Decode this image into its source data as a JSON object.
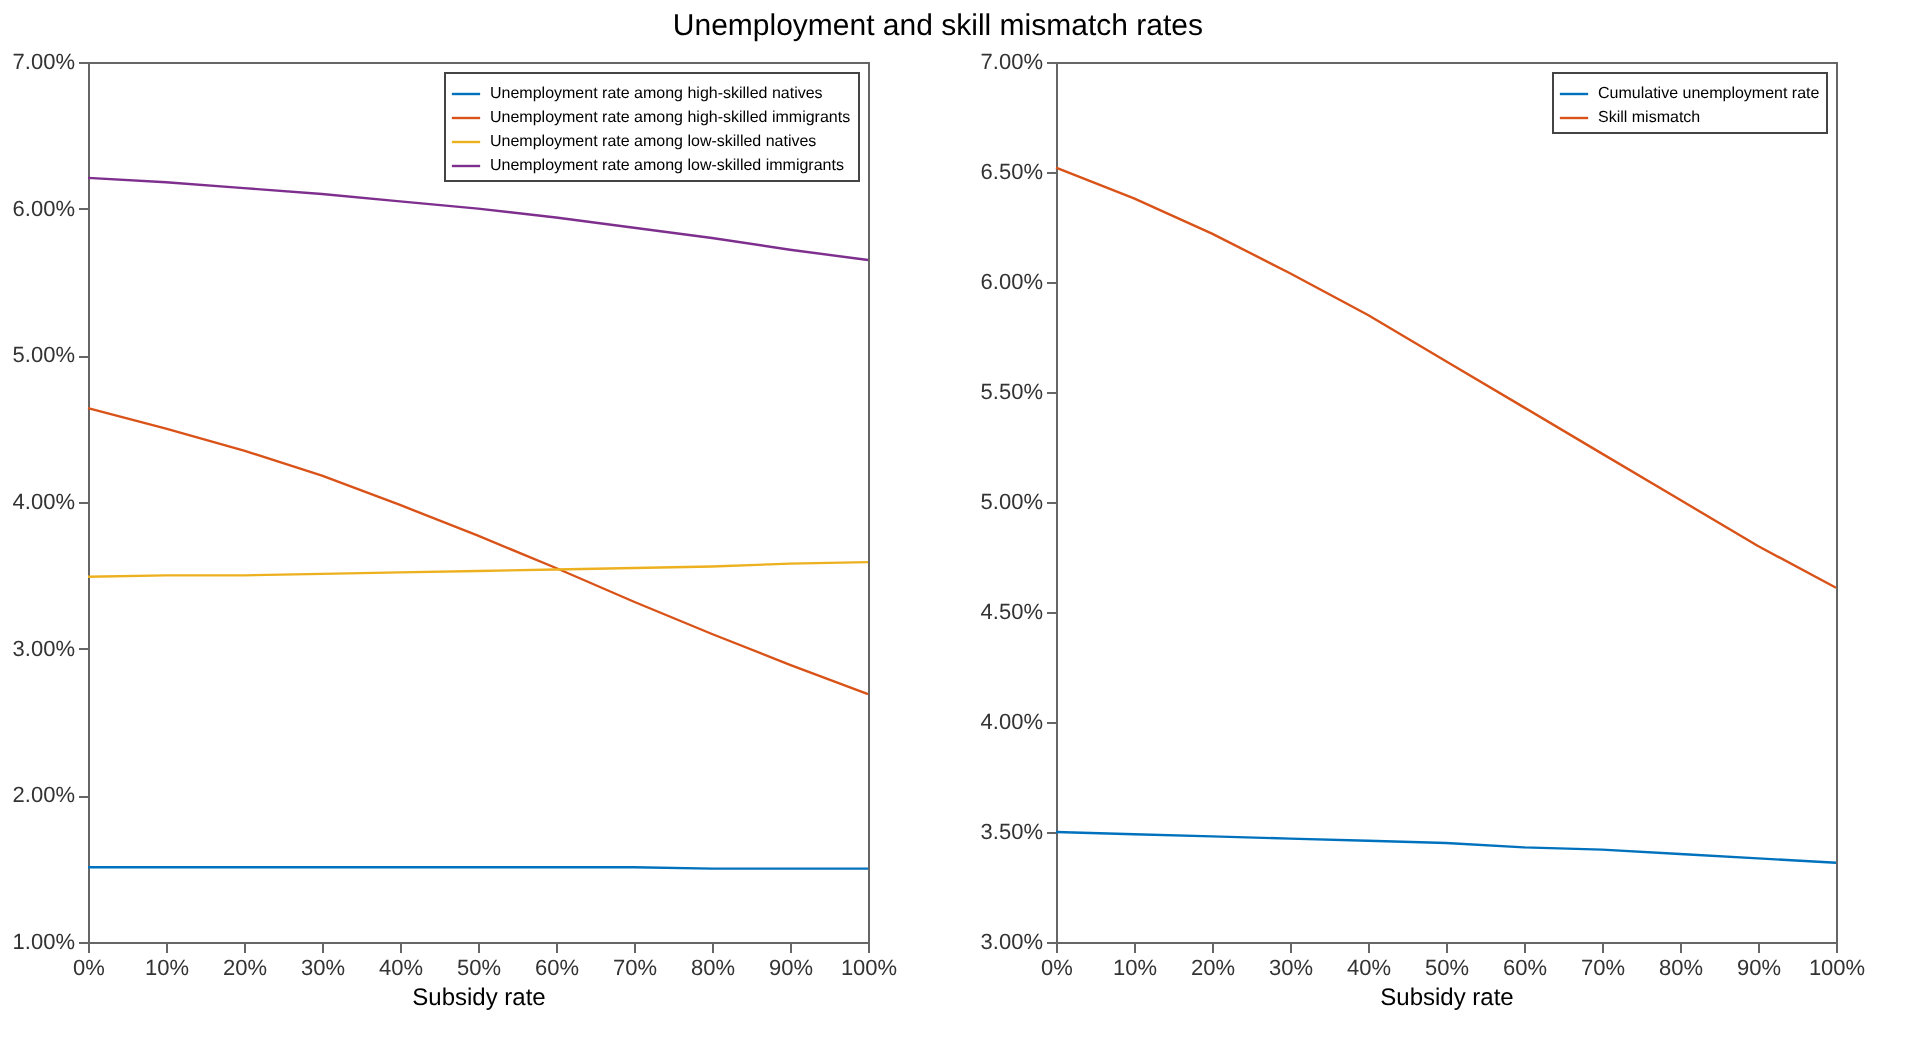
{
  "chart_data": [
    {
      "type": "line",
      "title": "Unemployment and skill mismatch rates",
      "xlabel": "Subsidy rate",
      "x": [
        0,
        10,
        20,
        30,
        40,
        50,
        60,
        70,
        80,
        90,
        100
      ],
      "xlim": [
        0,
        100
      ],
      "xticks": [
        {
          "value": 0,
          "label": "0%"
        },
        {
          "value": 10,
          "label": "10%"
        },
        {
          "value": 20,
          "label": "20%"
        },
        {
          "value": 30,
          "label": "30%"
        },
        {
          "value": 40,
          "label": "40%"
        },
        {
          "value": 50,
          "label": "50%"
        },
        {
          "value": 60,
          "label": "60%"
        },
        {
          "value": 70,
          "label": "70%"
        },
        {
          "value": 80,
          "label": "80%"
        },
        {
          "value": 90,
          "label": "90%"
        },
        {
          "value": 100,
          "label": "100%"
        }
      ],
      "ylim": [
        1,
        7
      ],
      "yticks": [
        {
          "value": 1,
          "label": "1.00%"
        },
        {
          "value": 2,
          "label": "2.00%"
        },
        {
          "value": 3,
          "label": "3.00%"
        },
        {
          "value": 4,
          "label": "4.00%"
        },
        {
          "value": 5,
          "label": "5.00%"
        },
        {
          "value": 6,
          "label": "6.00%"
        },
        {
          "value": 7,
          "label": "7.00%"
        }
      ],
      "grid": false,
      "legend": "top right",
      "marker": "none",
      "line_style": "solid",
      "series": [
        {
          "name": "Unemployment rate among high-skilled natives",
          "color": "#0072bd",
          "values": [
            1.51,
            1.51,
            1.51,
            1.51,
            1.51,
            1.51,
            1.51,
            1.51,
            1.5,
            1.5,
            1.5
          ]
        },
        {
          "name": "Unemployment rate among high-skilled immigrants",
          "color": "#d95319",
          "values": [
            4.64,
            4.5,
            4.35,
            4.18,
            3.98,
            3.77,
            3.55,
            3.32,
            3.1,
            2.89,
            2.69
          ]
        },
        {
          "name": "Unemployment rate among low-skilled natives",
          "color": "#edb120",
          "values": [
            3.49,
            3.5,
            3.5,
            3.51,
            3.52,
            3.53,
            3.54,
            3.55,
            3.56,
            3.58,
            3.59
          ]
        },
        {
          "name": "Unemployment rate among low-skilled immigrants",
          "color": "#7e2f8e",
          "values": [
            6.21,
            6.18,
            6.14,
            6.1,
            6.05,
            6.0,
            5.94,
            5.87,
            5.8,
            5.72,
            5.65
          ]
        }
      ]
    },
    {
      "type": "line",
      "xlabel": "Subsidy rate",
      "x": [
        0,
        10,
        20,
        30,
        40,
        50,
        60,
        70,
        80,
        90,
        100
      ],
      "xlim": [
        0,
        100
      ],
      "xticks": [
        {
          "value": 0,
          "label": "0%"
        },
        {
          "value": 10,
          "label": "10%"
        },
        {
          "value": 20,
          "label": "20%"
        },
        {
          "value": 30,
          "label": "30%"
        },
        {
          "value": 40,
          "label": "40%"
        },
        {
          "value": 50,
          "label": "50%"
        },
        {
          "value": 60,
          "label": "60%"
        },
        {
          "value": 70,
          "label": "70%"
        },
        {
          "value": 80,
          "label": "80%"
        },
        {
          "value": 90,
          "label": "90%"
        },
        {
          "value": 100,
          "label": "100%"
        }
      ],
      "ylim": [
        3,
        7
      ],
      "yticks": [
        {
          "value": 3,
          "label": "3.00%"
        },
        {
          "value": 3.5,
          "label": "3.50%"
        },
        {
          "value": 4,
          "label": "4.00%"
        },
        {
          "value": 4.5,
          "label": "4.50%"
        },
        {
          "value": 5,
          "label": "5.00%"
        },
        {
          "value": 5.5,
          "label": "5.50%"
        },
        {
          "value": 6,
          "label": "6.00%"
        },
        {
          "value": 6.5,
          "label": "6.50%"
        },
        {
          "value": 7,
          "label": "7.00%"
        }
      ],
      "grid": false,
      "legend": "top right",
      "marker": "none",
      "line_style": "solid",
      "series": [
        {
          "name": "Cumulative unemployment rate",
          "color": "#0072bd",
          "values": [
            3.5,
            3.49,
            3.48,
            3.47,
            3.46,
            3.45,
            3.43,
            3.42,
            3.4,
            3.38,
            3.36
          ]
        },
        {
          "name": "Skill mismatch",
          "color": "#d95319",
          "values": [
            6.52,
            6.38,
            6.22,
            6.04,
            5.85,
            5.64,
            5.43,
            5.22,
            5.01,
            4.8,
            4.61
          ]
        }
      ]
    }
  ]
}
